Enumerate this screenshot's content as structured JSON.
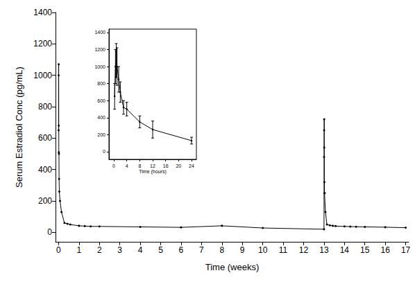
{
  "chart_data": [
    {
      "type": "line",
      "x_label": "Time (weeks)",
      "y_label": "Serum Estradiol Conc (pg/mL)",
      "x": [
        0,
        0.003,
        0.006,
        0.009,
        0.012,
        0.018,
        0.024,
        0.036,
        0.071,
        0.143,
        0.286,
        0.429,
        0.571,
        1,
        1.286,
        1.571,
        2,
        4,
        6,
        8,
        10,
        13,
        13.003,
        13.006,
        13.009,
        13.012,
        13.018,
        13.024,
        13.036,
        13.071,
        13.143,
        13.286,
        13.429,
        13.571,
        14,
        14.286,
        14.571,
        15,
        16,
        17
      ],
      "values": [
        650,
        1000,
        1070,
        680,
        510,
        500,
        340,
        260,
        200,
        130,
        60,
        55,
        50,
        42,
        40,
        38,
        38,
        35,
        32,
        42,
        28,
        20,
        480,
        650,
        720,
        540,
        320,
        250,
        250,
        130,
        50,
        45,
        42,
        40,
        38,
        37,
        36,
        35,
        33,
        30
      ],
      "xlim": [
        -0.15,
        17.15
      ],
      "ylim": [
        -60,
        1400
      ],
      "xticks": [
        0,
        1,
        2,
        3,
        4,
        5,
        6,
        7,
        8,
        9,
        10,
        11,
        12,
        13,
        14,
        15,
        16,
        17
      ],
      "yticks": [
        0,
        200,
        400,
        600,
        800,
        1000,
        1200,
        1400
      ],
      "color": "#000000",
      "marker": "circle",
      "line_style": "solid",
      "grid": false
    },
    {
      "type": "line",
      "x_label": "Time (hours)",
      "x": [
        0.25,
        0.5,
        0.75,
        1,
        1.5,
        2,
        3,
        4,
        8,
        12,
        24
      ],
      "values": [
        650,
        1000,
        1070,
        1000,
        850,
        700,
        520,
        500,
        350,
        260,
        130
      ],
      "errors": [
        150,
        200,
        200,
        220,
        150,
        120,
        80,
        80,
        70,
        100,
        40
      ],
      "xlim": [
        -1.5,
        25.5
      ],
      "ylim": [
        -90,
        1440
      ],
      "xticks": [
        0,
        4,
        8,
        12,
        16,
        20,
        24
      ],
      "yticks": [
        0,
        200,
        400,
        600,
        800,
        1000,
        1200,
        1400
      ],
      "color": "#000000",
      "marker": "circle",
      "line_style": "solid",
      "grid": false
    }
  ]
}
